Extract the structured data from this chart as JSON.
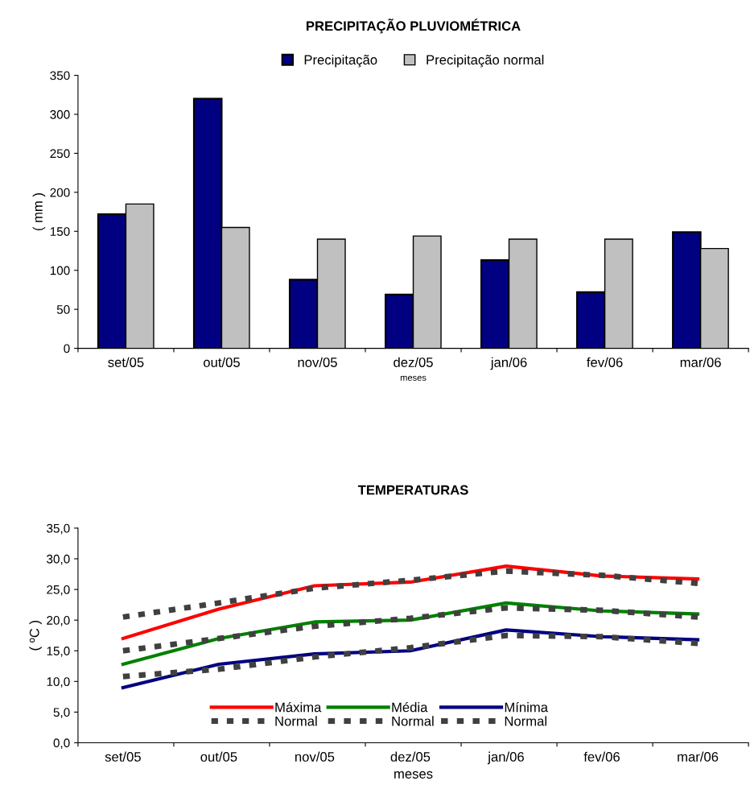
{
  "chart_data": [
    {
      "type": "bar",
      "title": "PRECIPITAÇÃO PLUVIOMÉTRICA",
      "xlabel": "meses",
      "ylabel": "( mm )",
      "categories": [
        "set/05",
        "out/05",
        "nov/05",
        "dez/05",
        "jan/06",
        "fev/06",
        "mar/06"
      ],
      "series": [
        {
          "name": "Precipitação",
          "color": "#000080",
          "values": [
            172,
            320,
            88,
            69,
            113,
            72,
            149
          ]
        },
        {
          "name": "Precipitação normal",
          "color": "#c0c0c0",
          "values": [
            185,
            155,
            140,
            144,
            140,
            140,
            128
          ]
        }
      ],
      "ylim": [
        0,
        350
      ],
      "yticks": [
        0,
        50,
        100,
        150,
        200,
        250,
        300,
        350
      ],
      "grid": false,
      "legend": "top"
    },
    {
      "type": "line",
      "title": "TEMPERATURAS",
      "xlabel": "meses",
      "ylabel": "( ºC )",
      "categories": [
        "set/05",
        "out/05",
        "nov/05",
        "dez/05",
        "jan/06",
        "fev/06",
        "mar/06"
      ],
      "series": [
        {
          "name": "Máxima",
          "color": "#ff0000",
          "line_style": "solid",
          "values": [
            17.0,
            21.8,
            25.6,
            26.2,
            28.8,
            27.2,
            26.7
          ]
        },
        {
          "name": "Normal",
          "color": "#404040",
          "line_style": "dashed",
          "values": [
            20.5,
            22.8,
            25.2,
            26.5,
            28.0,
            27.3,
            26.0
          ]
        },
        {
          "name": "Média",
          "color": "#008000",
          "line_style": "solid",
          "values": [
            12.8,
            17.0,
            19.7,
            20.0,
            22.8,
            21.5,
            21.0
          ]
        },
        {
          "name": "Normal",
          "color": "#404040",
          "line_style": "dashed",
          "values": [
            15.0,
            17.0,
            19.0,
            20.3,
            22.0,
            21.6,
            20.5
          ]
        },
        {
          "name": "Mínima",
          "color": "#000080",
          "line_style": "solid",
          "values": [
            9.0,
            12.8,
            14.5,
            15.0,
            18.4,
            17.3,
            16.8
          ]
        },
        {
          "name": "Normal",
          "color": "#404040",
          "line_style": "dashed",
          "values": [
            10.8,
            12.0,
            14.0,
            15.5,
            17.5,
            17.3,
            16.2
          ]
        }
      ],
      "ylim": [
        0,
        35
      ],
      "yticks": [
        {
          "value": 0,
          "label": "0,0"
        },
        {
          "value": 5,
          "label": "5,0"
        },
        {
          "value": 10,
          "label": "10,0"
        },
        {
          "value": 15,
          "label": "15,0"
        },
        {
          "value": 20,
          "label": "20,0"
        },
        {
          "value": 25,
          "label": "25,0"
        },
        {
          "value": 30,
          "label": "30,0"
        },
        {
          "value": 35,
          "label": "35,0"
        }
      ],
      "grid": false,
      "legend": "bottom"
    }
  ]
}
